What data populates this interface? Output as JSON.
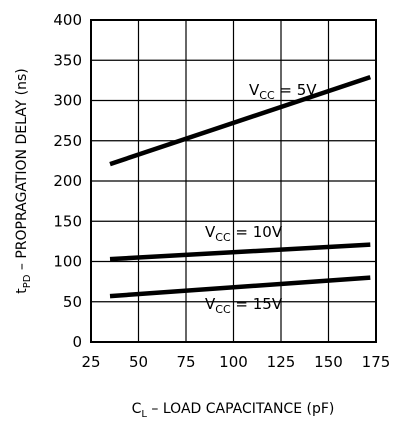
{
  "chart_data": {
    "type": "line",
    "xlabel": {
      "main": "C",
      "sub": "L",
      "rest": " – LOAD CAPACITANCE (pF)"
    },
    "ylabel": {
      "main": "t",
      "sub": "PD",
      "rest": " – PROPRAGATION DELAY (ns)"
    },
    "xlim": [
      25,
      175
    ],
    "ylim": [
      0,
      400
    ],
    "xticks": [
      "25",
      "50",
      "75",
      "100",
      "125",
      "150",
      "175"
    ],
    "yticks": [
      "0",
      "50",
      "100",
      "150",
      "200",
      "250",
      "300",
      "350",
      "400"
    ],
    "grid": true,
    "series": [
      {
        "name_main": "V",
        "name_sub": "CC",
        "name_rest": " = 5V",
        "x": [
          35,
          172
        ],
        "y": [
          221,
          329
        ]
      },
      {
        "name_main": "V",
        "name_sub": "CC",
        "name_rest": " = 10V",
        "x": [
          35,
          172
        ],
        "y": [
          103,
          121
        ]
      },
      {
        "name_main": "V",
        "name_sub": "CC",
        "name_rest": " = 15V",
        "x": [
          35,
          172
        ],
        "y": [
          57,
          80
        ]
      }
    ]
  }
}
